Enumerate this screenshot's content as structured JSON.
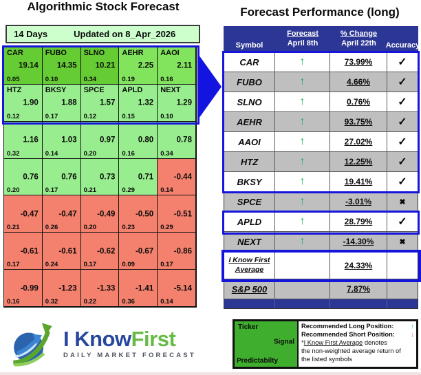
{
  "colors": {
    "strong_green": "#66cc33",
    "medium_green": "#82e35c",
    "light_green": "#98ee8e",
    "negative_red": "#f4816e",
    "pale_green_bar": "#ccffcc",
    "navy_header": "#2c3795",
    "gray_row": "#bfbfbf",
    "blue_border": "#1414dd",
    "arrow_green": "#1fae5a",
    "arrow_red": "#e05a5a",
    "legend_green": "#3fae2e",
    "logo_blue": "#27479e",
    "logo_green": "#65bb44"
  },
  "left_panel": {
    "title": "Algorithmic Stock Forecast",
    "period": "14 Days",
    "updated": "Updated on 8_Apr_2026",
    "grid": {
      "rows": [
        {
          "cells": [
            {
              "ticker": "CAR",
              "signal": "19.14",
              "predictability": "0.05",
              "tone": "strong"
            },
            {
              "ticker": "FUBO",
              "signal": "14.35",
              "predictability": "0.10",
              "tone": "strong"
            },
            {
              "ticker": "SLNO",
              "signal": "10.21",
              "predictability": "0.34",
              "tone": "strong"
            },
            {
              "ticker": "AEHR",
              "signal": "2.25",
              "predictability": "0.19",
              "tone": "medium"
            },
            {
              "ticker": "AAOI",
              "signal": "2.11",
              "predictability": "0.16",
              "tone": "medium"
            }
          ]
        },
        {
          "cells": [
            {
              "ticker": "HTZ",
              "signal": "1.90",
              "predictability": "0.12",
              "tone": "light"
            },
            {
              "ticker": "BKSY",
              "signal": "1.88",
              "predictability": "0.17",
              "tone": "light"
            },
            {
              "ticker": "SPCE",
              "signal": "1.57",
              "predictability": "0.12",
              "tone": "light"
            },
            {
              "ticker": "APLD",
              "signal": "1.32",
              "predictability": "0.15",
              "tone": "light"
            },
            {
              "ticker": "NEXT",
              "signal": "1.29",
              "predictability": "0.10",
              "tone": "light"
            }
          ]
        },
        {
          "cells": [
            {
              "ticker": "",
              "signal": "1.16",
              "predictability": "0.32",
              "tone": "light"
            },
            {
              "ticker": "",
              "signal": "1.03",
              "predictability": "0.14",
              "tone": "light"
            },
            {
              "ticker": "",
              "signal": "0.97",
              "predictability": "0.20",
              "tone": "light"
            },
            {
              "ticker": "",
              "signal": "0.80",
              "predictability": "0.16",
              "tone": "light"
            },
            {
              "ticker": "",
              "signal": "0.78",
              "predictability": "0.34",
              "tone": "light"
            }
          ]
        },
        {
          "cells": [
            {
              "ticker": "",
              "signal": "0.76",
              "predictability": "0.20",
              "tone": "light"
            },
            {
              "ticker": "",
              "signal": "0.76",
              "predictability": "0.17",
              "tone": "light"
            },
            {
              "ticker": "",
              "signal": "0.73",
              "predictability": "0.21",
              "tone": "light"
            },
            {
              "ticker": "",
              "signal": "0.71",
              "predictability": "0.29",
              "tone": "light"
            },
            {
              "ticker": "",
              "signal": "-0.44",
              "predictability": "0.14",
              "tone": "red"
            }
          ]
        },
        {
          "cells": [
            {
              "ticker": "",
              "signal": "-0.47",
              "predictability": "0.21",
              "tone": "red"
            },
            {
              "ticker": "",
              "signal": "-0.47",
              "predictability": "0.26",
              "tone": "red"
            },
            {
              "ticker": "",
              "signal": "-0.49",
              "predictability": "0.20",
              "tone": "red"
            },
            {
              "ticker": "",
              "signal": "-0.50",
              "predictability": "0.23",
              "tone": "red"
            },
            {
              "ticker": "",
              "signal": "-0.51",
              "predictability": "0.29",
              "tone": "red"
            }
          ]
        },
        {
          "cells": [
            {
              "ticker": "",
              "signal": "-0.61",
              "predictability": "0.17",
              "tone": "red"
            },
            {
              "ticker": "",
              "signal": "-0.61",
              "predictability": "0.24",
              "tone": "red"
            },
            {
              "ticker": "",
              "signal": "-0.62",
              "predictability": "0.17",
              "tone": "red"
            },
            {
              "ticker": "",
              "signal": "-0.67",
              "predictability": "0.09",
              "tone": "red"
            },
            {
              "ticker": "",
              "signal": "-0.86",
              "predictability": "0.17",
              "tone": "red"
            }
          ]
        },
        {
          "cells": [
            {
              "ticker": "",
              "signal": "-0.99",
              "predictability": "0.16",
              "tone": "red"
            },
            {
              "ticker": "",
              "signal": "-1.23",
              "predictability": "0.32",
              "tone": "red"
            },
            {
              "ticker": "",
              "signal": "-1.33",
              "predictability": "0.22",
              "tone": "red"
            },
            {
              "ticker": "",
              "signal": "-1.41",
              "predictability": "0.36",
              "tone": "red"
            },
            {
              "ticker": "",
              "signal": "-5.14",
              "predictability": "0.14",
              "tone": "red"
            }
          ]
        }
      ]
    }
  },
  "right_panel": {
    "title": "Forecast Performance (long)",
    "header": {
      "col_symbol": "Symbol",
      "col_forecast_l1": "Forecast",
      "col_forecast_l2": "April 8th",
      "col_change_l1": "% Change",
      "col_change_l2": "April 22th",
      "col_accuracy": "Accuracy"
    },
    "glyphs": {
      "check": "✓",
      "cross": "✖",
      "up": "↑"
    },
    "rows": [
      {
        "symbol": "CAR",
        "arrow": "up",
        "change": "73.99%",
        "accuracy": "check",
        "shade": "white"
      },
      {
        "symbol": "FUBO",
        "arrow": "up",
        "change": "4.66%",
        "accuracy": "check",
        "shade": "gray"
      },
      {
        "symbol": "SLNO",
        "arrow": "up",
        "change": "0.76%",
        "accuracy": "check",
        "shade": "white"
      },
      {
        "symbol": "AEHR",
        "arrow": "up",
        "change": "93.75%",
        "accuracy": "check",
        "shade": "gray"
      },
      {
        "symbol": "AAOI",
        "arrow": "up",
        "change": "27.02%",
        "accuracy": "check",
        "shade": "white"
      },
      {
        "symbol": "HTZ",
        "arrow": "up",
        "change": "12.25%",
        "accuracy": "check",
        "shade": "gray"
      },
      {
        "symbol": "BKSY",
        "arrow": "up",
        "change": "19.41%",
        "accuracy": "check",
        "shade": "white"
      },
      {
        "symbol": "SPCE",
        "arrow": "up",
        "change": "-3.01%",
        "accuracy": "cross",
        "shade": "gray"
      },
      {
        "symbol": "APLD",
        "arrow": "up",
        "change": "28.79%",
        "accuracy": "check",
        "shade": "white"
      },
      {
        "symbol": "NEXT",
        "arrow": "up",
        "change": "-14.30%",
        "accuracy": "cross",
        "shade": "gray"
      },
      {
        "symbol": "I Know First\nAverage",
        "arrow": "",
        "change": "24.33%",
        "accuracy": "",
        "shade": "white",
        "underline": true
      },
      {
        "symbol": "S&P 500",
        "arrow": "",
        "change": "7.87%",
        "accuracy": "",
        "shade": "gray",
        "underline": true
      }
    ]
  },
  "legend": {
    "ticker_label": "Ticker",
    "signal_label": "Signal",
    "predictability_label": "Predictabilty",
    "long_line": "Recommended Long Position:",
    "long_arrow": "↑",
    "short_line": "Recommended Short Position:",
    "short_arrow": "↓",
    "note_prefix": "*",
    "note_underlined": "I Know First Average",
    "note_suffix": " denotes",
    "note_line2": "the non-weighted average return of",
    "note_line3": "the listed symbols"
  },
  "logo": {
    "text_primary": "I Know",
    "text_secondary": "First",
    "tagline": "DAILY MARKET FORECAST"
  }
}
